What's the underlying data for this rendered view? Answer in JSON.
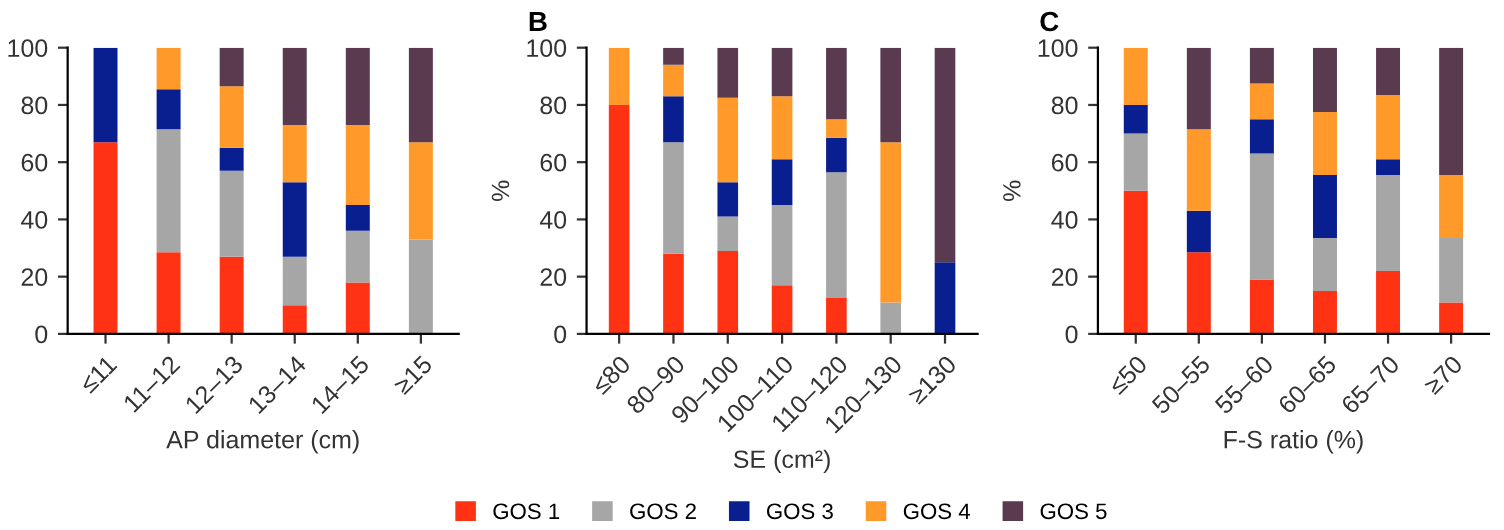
{
  "chart_data": [
    {
      "type": "bar",
      "stacked": true,
      "xlabel": "AP diameter (cm)",
      "categories": [
        "≤11",
        "11–12",
        "12–13",
        "13–14",
        "14–15",
        "≥15"
      ],
      "ylim": [
        0,
        100
      ],
      "yticks": [
        0,
        20,
        40,
        60,
        80,
        100
      ],
      "grid": false,
      "series": [
        {
          "color": "#ff3314",
          "values": [
            67,
            28.5,
            27,
            10,
            18,
            0
          ]
        },
        {
          "color": "#a6a6a6",
          "values": [
            0,
            43,
            30,
            17,
            18,
            33
          ]
        },
        {
          "color": "#0a1f8f",
          "values": [
            33,
            14,
            8,
            26,
            9,
            0
          ]
        },
        {
          "color": "#ff9a2a",
          "values": [
            0,
            14.5,
            21.5,
            20,
            28,
            34
          ]
        },
        {
          "color": "#5a3a4e",
          "values": [
            0,
            0,
            13.5,
            27,
            27,
            33
          ]
        }
      ]
    },
    {
      "type": "bar",
      "stacked": true,
      "title": "B",
      "xlabel": "SE (cm²)",
      "ylabel": "%",
      "legend": "bottom",
      "categories": [
        "≤80",
        "80–90",
        "90–100",
        "100–110",
        "110–120",
        "120–130",
        "≥130"
      ],
      "ylim": [
        0,
        100
      ],
      "yticks": [
        0,
        20,
        40,
        60,
        80,
        100
      ],
      "grid": false,
      "series": [
        {
          "name": "GOS 1",
          "color": "#ff3314",
          "values": [
            80,
            28,
            29,
            17,
            12.5,
            0,
            0
          ]
        },
        {
          "name": "GOS 2",
          "color": "#a6a6a6",
          "values": [
            0,
            39,
            12,
            28,
            44,
            11,
            0
          ]
        },
        {
          "name": "GOS 3",
          "color": "#0a1f8f",
          "values": [
            0,
            16,
            12,
            16,
            12,
            0,
            25
          ]
        },
        {
          "name": "GOS 4",
          "color": "#ff9a2a",
          "values": [
            20,
            11,
            29.5,
            22,
            6.5,
            56,
            0
          ]
        },
        {
          "name": "GOS 5",
          "color": "#5a3a4e",
          "values": [
            0,
            6,
            17.5,
            17,
            25,
            33,
            75
          ]
        }
      ]
    },
    {
      "type": "bar",
      "stacked": true,
      "title": "C",
      "xlabel": "F-S ratio (%)",
      "ylabel": "%",
      "categories": [
        "≤50",
        "50–55",
        "55–60",
        "60–65",
        "65–70",
        "≥70"
      ],
      "ylim": [
        0,
        100
      ],
      "yticks": [
        0,
        20,
        40,
        60,
        80,
        100
      ],
      "grid": false,
      "series": [
        {
          "color": "#ff3314",
          "values": [
            50,
            28.5,
            19,
            15,
            22,
            11
          ]
        },
        {
          "color": "#a6a6a6",
          "values": [
            20,
            0,
            44,
            18.5,
            33.5,
            22.5
          ]
        },
        {
          "color": "#0a1f8f",
          "values": [
            10,
            14.5,
            12,
            22,
            5.5,
            0
          ]
        },
        {
          "color": "#ff9a2a",
          "values": [
            20,
            28.5,
            12.5,
            22,
            22.5,
            22
          ]
        },
        {
          "color": "#5a3a4e",
          "values": [
            0,
            28.5,
            12.5,
            22.5,
            16.5,
            44.5
          ]
        }
      ]
    }
  ]
}
